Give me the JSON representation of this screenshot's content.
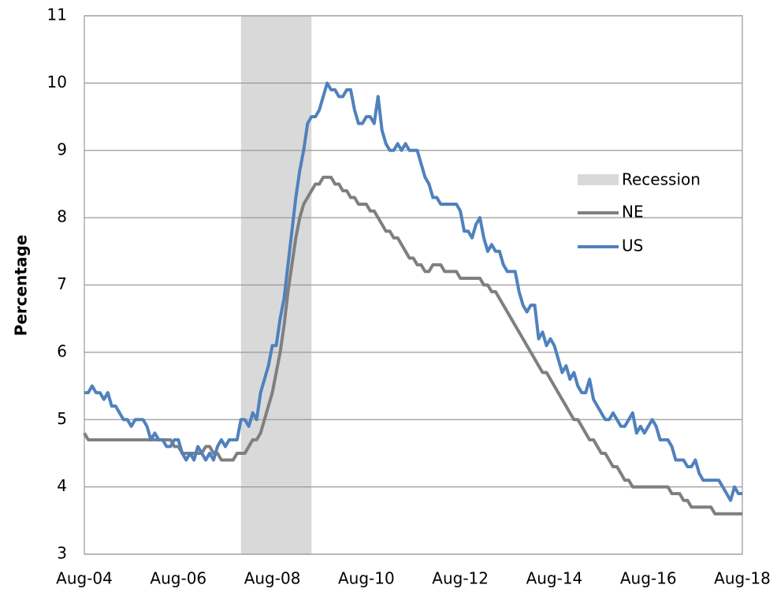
{
  "chart_data": {
    "type": "line",
    "y_label": "Percentage",
    "categories": [
      "Aug-04",
      null,
      null,
      null,
      null,
      null,
      null,
      null,
      null,
      null,
      null,
      null,
      null,
      null,
      null,
      null,
      null,
      null,
      null,
      null,
      null,
      null,
      null,
      null,
      "Aug-06",
      null,
      null,
      null,
      null,
      null,
      null,
      null,
      null,
      null,
      null,
      null,
      null,
      null,
      null,
      null,
      null,
      null,
      null,
      null,
      null,
      null,
      null,
      null,
      "Aug-08",
      null,
      null,
      null,
      null,
      null,
      null,
      null,
      null,
      null,
      null,
      null,
      null,
      null,
      null,
      null,
      null,
      null,
      null,
      null,
      null,
      null,
      null,
      null,
      "Aug-10",
      null,
      null,
      null,
      null,
      null,
      null,
      null,
      null,
      null,
      null,
      null,
      null,
      null,
      null,
      null,
      null,
      null,
      null,
      null,
      null,
      null,
      null,
      null,
      "Aug-12",
      null,
      null,
      null,
      null,
      null,
      null,
      null,
      null,
      null,
      null,
      null,
      null,
      null,
      null,
      null,
      null,
      null,
      null,
      null,
      null,
      null,
      null,
      null,
      "Aug-14",
      null,
      null,
      null,
      null,
      null,
      null,
      null,
      null,
      null,
      null,
      null,
      null,
      null,
      null,
      null,
      null,
      null,
      null,
      null,
      null,
      null,
      null,
      null,
      "Aug-16",
      null,
      null,
      null,
      null,
      null,
      null,
      null,
      null,
      null,
      null,
      null,
      null,
      null,
      null,
      null,
      null,
      null,
      null,
      null,
      null,
      null,
      null,
      null,
      "Aug-18"
    ],
    "series": [
      {
        "name": "NE",
        "color": "#7f7f7f",
        "values": [
          4.8,
          4.7,
          4.7,
          4.7,
          4.7,
          4.7,
          4.7,
          4.7,
          4.7,
          4.7,
          4.7,
          4.7,
          4.7,
          4.7,
          4.7,
          4.7,
          4.7,
          4.7,
          4.7,
          4.7,
          4.7,
          4.7,
          4.7,
          4.6,
          4.6,
          4.5,
          4.5,
          4.5,
          4.5,
          4.5,
          4.5,
          4.6,
          4.6,
          4.5,
          4.5,
          4.4,
          4.4,
          4.4,
          4.4,
          4.5,
          4.5,
          4.5,
          4.6,
          4.7,
          4.7,
          4.8,
          5.0,
          5.2,
          5.4,
          5.7,
          6.0,
          6.4,
          6.9,
          7.3,
          7.7,
          8.0,
          8.2,
          8.3,
          8.4,
          8.5,
          8.5,
          8.6,
          8.6,
          8.6,
          8.5,
          8.5,
          8.4,
          8.4,
          8.3,
          8.3,
          8.2,
          8.2,
          8.2,
          8.1,
          8.1,
          8.0,
          7.9,
          7.8,
          7.8,
          7.7,
          7.7,
          7.6,
          7.5,
          7.4,
          7.4,
          7.3,
          7.3,
          7.2,
          7.2,
          7.3,
          7.3,
          7.3,
          7.2,
          7.2,
          7.2,
          7.2,
          7.1,
          7.1,
          7.1,
          7.1,
          7.1,
          7.1,
          7.0,
          7.0,
          6.9,
          6.9,
          6.8,
          6.7,
          6.6,
          6.5,
          6.4,
          6.3,
          6.2,
          6.1,
          6.0,
          5.9,
          5.8,
          5.7,
          5.7,
          5.6,
          5.5,
          5.4,
          5.3,
          5.2,
          5.1,
          5.0,
          5.0,
          4.9,
          4.8,
          4.7,
          4.7,
          4.6,
          4.5,
          4.5,
          4.4,
          4.3,
          4.3,
          4.2,
          4.1,
          4.1,
          4.0,
          4.0,
          4.0,
          4.0,
          4.0,
          4.0,
          4.0,
          4.0,
          4.0,
          4.0,
          3.9,
          3.9,
          3.9,
          3.8,
          3.8,
          3.7,
          3.7,
          3.7,
          3.7,
          3.7,
          3.7,
          3.6,
          3.6,
          3.6,
          3.6,
          3.6,
          3.6,
          3.6,
          3.6
        ]
      },
      {
        "name": "US",
        "color": "#4f81bd",
        "values": [
          5.4,
          5.4,
          5.5,
          5.4,
          5.4,
          5.3,
          5.4,
          5.2,
          5.2,
          5.1,
          5.0,
          5.0,
          4.9,
          5.0,
          5.0,
          5.0,
          4.9,
          4.7,
          4.8,
          4.7,
          4.7,
          4.6,
          4.6,
          4.7,
          4.7,
          4.5,
          4.4,
          4.5,
          4.4,
          4.6,
          4.5,
          4.4,
          4.5,
          4.4,
          4.6,
          4.7,
          4.6,
          4.7,
          4.7,
          4.7,
          5.0,
          5.0,
          4.9,
          5.1,
          5.0,
          5.4,
          5.6,
          5.8,
          6.1,
          6.1,
          6.5,
          6.8,
          7.3,
          7.8,
          8.3,
          8.7,
          9.0,
          9.4,
          9.5,
          9.5,
          9.6,
          9.8,
          10.0,
          9.9,
          9.9,
          9.8,
          9.8,
          9.9,
          9.9,
          9.6,
          9.4,
          9.4,
          9.5,
          9.5,
          9.4,
          9.8,
          9.3,
          9.1,
          9.0,
          9.0,
          9.1,
          9.0,
          9.1,
          9.0,
          9.0,
          9.0,
          8.8,
          8.6,
          8.5,
          8.3,
          8.3,
          8.2,
          8.2,
          8.2,
          8.2,
          8.2,
          8.1,
          7.8,
          7.8,
          7.7,
          7.9,
          8.0,
          7.7,
          7.5,
          7.6,
          7.5,
          7.5,
          7.3,
          7.2,
          7.2,
          7.2,
          6.9,
          6.7,
          6.6,
          6.7,
          6.7,
          6.2,
          6.3,
          6.1,
          6.2,
          6.1,
          5.9,
          5.7,
          5.8,
          5.6,
          5.7,
          5.5,
          5.4,
          5.4,
          5.6,
          5.3,
          5.2,
          5.1,
          5.0,
          5.0,
          5.1,
          5.0,
          4.9,
          4.9,
          5.0,
          5.1,
          4.8,
          4.9,
          4.8,
          4.9,
          5.0,
          4.9,
          4.7,
          4.7,
          4.7,
          4.6,
          4.4,
          4.4,
          4.4,
          4.3,
          4.3,
          4.4,
          4.2,
          4.1,
          4.1,
          4.1,
          4.1,
          4.1,
          4.0,
          3.9,
          3.8,
          4.0,
          3.9,
          3.9
        ]
      }
    ],
    "recession": {
      "name": "Recession",
      "color": "#d9d9d9",
      "start": 40,
      "end": 58
    },
    "ylim": [
      3,
      11
    ],
    "yticks": [
      3,
      4,
      5,
      6,
      7,
      8,
      9,
      10,
      11
    ],
    "grid": true
  }
}
